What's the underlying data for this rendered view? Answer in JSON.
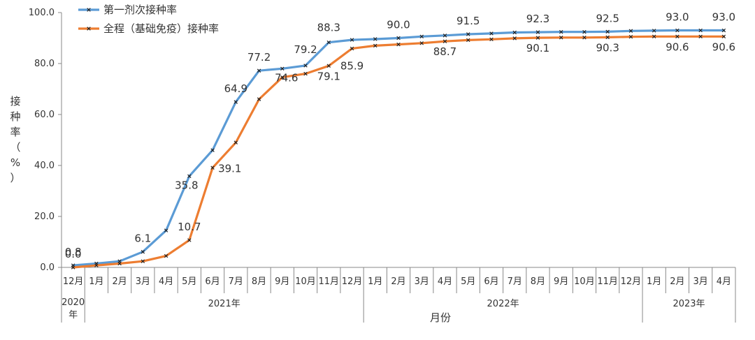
{
  "chart_data": {
    "type": "line",
    "ylabel": "接种率（%）",
    "xlabel": "月份",
    "ylim": [
      0,
      100
    ],
    "yticks": [
      "0.0",
      "20.0",
      "40.0",
      "60.0",
      "80.0",
      "100.0"
    ],
    "categories": [
      "12月",
      "1月",
      "2月",
      "3月",
      "4月",
      "5月",
      "6月",
      "7月",
      "8月",
      "9月",
      "10月",
      "11月",
      "12月",
      "1月",
      "2月",
      "3月",
      "4月",
      "5月",
      "6月",
      "7月",
      "8月",
      "9月",
      "10月",
      "11月",
      "12月",
      "1月",
      "2月",
      "3月",
      "4月"
    ],
    "year_groups": [
      {
        "label": "2020年",
        "span": 1
      },
      {
        "label": "2021年",
        "span": 12
      },
      {
        "label": "2022年",
        "span": 12
      },
      {
        "label": "2023年",
        "span": 4
      }
    ],
    "legend_position": "top-left",
    "grid": false,
    "series": [
      {
        "name": "第一剂次接种率",
        "color": "#5B9BD5",
        "values": [
          0.8,
          1.5,
          2.4,
          6.1,
          14.5,
          35.8,
          46.0,
          64.9,
          77.2,
          78.0,
          79.2,
          88.3,
          89.3,
          89.6,
          90.0,
          90.6,
          91.0,
          91.5,
          91.8,
          92.2,
          92.3,
          92.4,
          92.4,
          92.5,
          92.8,
          92.9,
          93.0,
          93.0,
          93.0
        ],
        "labels": {
          "0": "0.8",
          "3": "6.1",
          "5": "35.8",
          "7": "64.9",
          "8": "77.2",
          "10": "79.2",
          "11": "88.3",
          "14": "90.0",
          "17": "91.5",
          "20": "92.3",
          "23": "92.5",
          "26": "93.0",
          "28": "93.0"
        }
      },
      {
        "name": "全程（基础免疫）接种率",
        "color": "#ED7D31",
        "values": [
          0.0,
          0.8,
          1.5,
          2.4,
          4.5,
          10.7,
          39.1,
          49.0,
          66.0,
          74.6,
          76.0,
          79.1,
          85.9,
          87.0,
          87.5,
          88.0,
          88.7,
          89.2,
          89.5,
          89.9,
          90.1,
          90.2,
          90.2,
          90.3,
          90.5,
          90.6,
          90.6,
          90.6,
          90.6
        ],
        "labels": {
          "0": "0.0",
          "5": "10.7",
          "6": "39.1",
          "9": "74.6",
          "11": "79.1",
          "12": "85.9",
          "16": "88.7",
          "20": "90.1",
          "23": "90.3",
          "26": "90.6",
          "28": "90.6"
        }
      }
    ]
  }
}
